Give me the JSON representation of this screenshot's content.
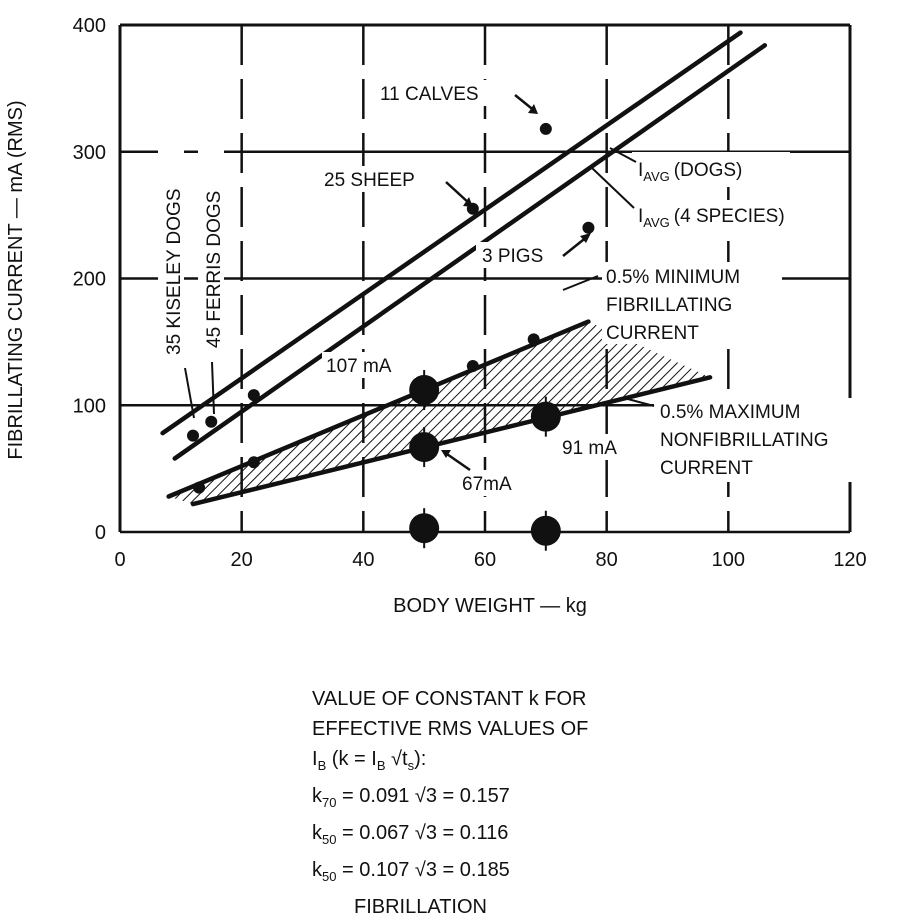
{
  "chart_data": {
    "type": "scatter",
    "xlabel": "BODY WEIGHT — kg",
    "ylabel": "FIBRILLATING CURRENT — mA (RMS)",
    "xlim": [
      0,
      120
    ],
    "ylim": [
      0,
      400
    ],
    "x_ticks": [
      "0",
      "20",
      "40",
      "60",
      "80",
      "100",
      "120"
    ],
    "y_ticks": [
      "0",
      "100",
      "200",
      "300",
      "400"
    ],
    "grid": true,
    "lines": [
      {
        "id": "iavg-dogs",
        "x": [
          7,
          102
        ],
        "y": [
          78,
          394
        ]
      },
      {
        "id": "iavg-4species",
        "x": [
          9,
          106
        ],
        "y": [
          58,
          384
        ]
      },
      {
        "id": "min-fibrillating",
        "x": [
          8,
          77
        ],
        "y": [
          28,
          166
        ]
      },
      {
        "id": "max-nonfibrillating",
        "x": [
          12,
          97
        ],
        "y": [
          22,
          122
        ]
      }
    ],
    "points": [
      {
        "label": "11 CALVES",
        "x": 70,
        "y": 318
      },
      {
        "label": "25 SHEEP",
        "x": 58,
        "y": 255
      },
      {
        "label": "3 PIGS",
        "x": 77,
        "y": 240
      },
      {
        "label": "35 KISELEY DOGS",
        "x": 12,
        "y": 76
      },
      {
        "label": "45 FERRIS DOGS",
        "x": 15,
        "y": 87
      },
      {
        "label": "",
        "x": 22,
        "y": 108
      },
      {
        "label": "",
        "x": 13,
        "y": 35
      },
      {
        "label": "",
        "x": 22,
        "y": 55
      },
      {
        "label": "",
        "x": 58,
        "y": 131
      },
      {
        "label": "",
        "x": 68,
        "y": 152
      }
    ],
    "markers": [
      {
        "label": "107 mA",
        "x": 50,
        "y": 112
      },
      {
        "label": "67mA",
        "x": 50,
        "y": 67
      },
      {
        "label": "91 mA",
        "x": 70,
        "y": 91
      },
      {
        "label": "",
        "x": 50,
        "y": 3
      },
      {
        "label": "",
        "x": 70,
        "y": 1
      }
    ],
    "annotations": {
      "calves": "11 CALVES",
      "sheep": "25 SHEEP",
      "pigs": "3 PIGS",
      "kiseley": "35 KISELEY DOGS",
      "ferris": "45 FERRIS DOGS",
      "iavg_main": "I",
      "iavg_sub": "AVG",
      "iavg_dogs": "(DOGS)",
      "iavg_4species": "(4 SPECIES)",
      "min1": "0.5% MINIMUM",
      "min2": "FIBRILLATING",
      "min3": "CURRENT",
      "max1": "0.5% MAXIMUM",
      "max2": "NONFIBRILLATING",
      "max3": "CURRENT",
      "m107": "107 mA",
      "m67": "67mA",
      "m91": "91 mA"
    }
  },
  "notes": {
    "line1": "VALUE OF CONSTANT k FOR",
    "line2": "EFFECTIVE RMS VALUES OF",
    "line3_I": "I",
    "line3_B": "B",
    "line3_mid": " (k = I",
    "line3_B2": "B",
    "line3_sqrt": "√t",
    "line3_s": "s",
    "line3_end": "):",
    "k1_k": "k",
    "k1_sub": "70",
    "k1_rest": " = 0.091 √3 = 0.157",
    "k2_k": "k",
    "k2_sub": "50",
    "k2_rest": " = 0.067 √3 = 0.116",
    "k3_k": "k",
    "k3_sub": "50",
    "k3_rest": " = 0.107 √3 = 0.185",
    "k3_note": "FIBRILLATION"
  }
}
